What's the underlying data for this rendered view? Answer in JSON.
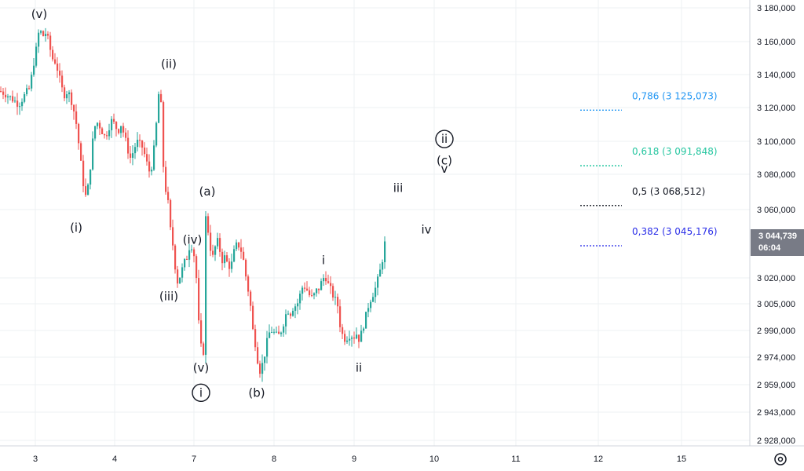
{
  "chart_data": {
    "type": "candlestick",
    "title": "",
    "xlabel": "",
    "ylabel": "",
    "x_ticks": [
      "3",
      "4",
      "7",
      "8",
      "9",
      "10",
      "11",
      "12",
      "15"
    ],
    "y_ticks": [
      "3 180,000",
      "3 160,000",
      "3 140,000",
      "3 120,000",
      "3 100,000",
      "3 080,000",
      "3 060,000",
      "3 044,739",
      "3 020,000",
      "3 005,000",
      "2 990,000",
      "2 974,000",
      "2 959,000",
      "2 943,000",
      "2 928,000"
    ],
    "ylim": [
      2928000,
      3180000
    ],
    "grid": true,
    "colors": {
      "up": "#26a69a",
      "down": "#ef5350",
      "grid": "#eef0f3",
      "last_price_bg": "#787b86"
    },
    "path": [
      [
        0,
        3130
      ],
      [
        8,
        3128
      ],
      [
        16,
        3125
      ],
      [
        24,
        3122
      ],
      [
        32,
        3128
      ],
      [
        38,
        3132
      ],
      [
        42,
        3145
      ],
      [
        46,
        3155
      ],
      [
        50,
        3168
      ],
      [
        54,
        3163
      ],
      [
        58,
        3165
      ],
      [
        62,
        3160
      ],
      [
        66,
        3150
      ],
      [
        70,
        3148
      ],
      [
        74,
        3142
      ],
      [
        78,
        3132
      ],
      [
        82,
        3128
      ],
      [
        86,
        3130
      ],
      [
        90,
        3126
      ],
      [
        94,
        3118
      ],
      [
        98,
        3108
      ],
      [
        102,
        3090
      ],
      [
        106,
        3075
      ],
      [
        110,
        3065
      ],
      [
        114,
        3080
      ],
      [
        118,
        3100
      ],
      [
        122,
        3112
      ],
      [
        126,
        3110
      ],
      [
        130,
        3106
      ],
      [
        134,
        3102
      ],
      [
        138,
        3108
      ],
      [
        142,
        3112
      ],
      [
        146,
        3110
      ],
      [
        150,
        3106
      ],
      [
        154,
        3110
      ],
      [
        158,
        3104
      ],
      [
        162,
        3096
      ],
      [
        166,
        3090
      ],
      [
        170,
        3094
      ],
      [
        174,
        3100
      ],
      [
        178,
        3098
      ],
      [
        182,
        3096
      ],
      [
        186,
        3088
      ],
      [
        190,
        3082
      ],
      [
        194,
        3086
      ],
      [
        198,
        3104
      ],
      [
        202,
        3128
      ],
      [
        204,
        3132
      ],
      [
        206,
        3110
      ],
      [
        208,
        3085
      ],
      [
        210,
        3072
      ],
      [
        213,
        3070
      ],
      [
        216,
        3050
      ],
      [
        219,
        3044
      ],
      [
        222,
        3030
      ],
      [
        226,
        3018
      ],
      [
        230,
        3022
      ],
      [
        234,
        3028
      ],
      [
        238,
        3032
      ],
      [
        242,
        3040
      ],
      [
        246,
        3038
      ],
      [
        250,
        3020
      ],
      [
        254,
        2985
      ],
      [
        258,
        2975
      ],
      [
        260,
        2980
      ],
      [
        262,
        3055
      ],
      [
        266,
        3045
      ],
      [
        270,
        3030
      ],
      [
        274,
        3038
      ],
      [
        278,
        3042
      ],
      [
        282,
        3030
      ],
      [
        286,
        3032
      ],
      [
        290,
        3028
      ],
      [
        294,
        3026
      ],
      [
        298,
        3035
      ],
      [
        302,
        3040
      ],
      [
        306,
        3038
      ],
      [
        310,
        3030
      ],
      [
        314,
        3018
      ],
      [
        318,
        3008
      ],
      [
        322,
        2990
      ],
      [
        326,
        2980
      ],
      [
        330,
        2966
      ],
      [
        334,
        2970
      ],
      [
        338,
        2978
      ],
      [
        342,
        2988
      ],
      [
        346,
        2990
      ],
      [
        350,
        2988
      ],
      [
        354,
        2986
      ],
      [
        358,
        2990
      ],
      [
        362,
        2996
      ],
      [
        366,
        3002
      ],
      [
        370,
        3000
      ],
      [
        374,
        3004
      ],
      [
        378,
        3004
      ],
      [
        382,
        3010
      ],
      [
        386,
        3016
      ],
      [
        390,
        3014
      ],
      [
        394,
        3010
      ],
      [
        398,
        3008
      ],
      [
        402,
        3012
      ],
      [
        406,
        3014
      ],
      [
        410,
        3018
      ],
      [
        414,
        3022
      ],
      [
        418,
        3016
      ],
      [
        422,
        3012
      ],
      [
        426,
        3008
      ],
      [
        430,
        3004
      ],
      [
        434,
        2990
      ],
      [
        438,
        2985
      ],
      [
        442,
        2986
      ],
      [
        446,
        2988
      ],
      [
        450,
        2986
      ],
      [
        454,
        2988
      ],
      [
        458,
        2984
      ],
      [
        462,
        2992
      ],
      [
        466,
        2998
      ],
      [
        470,
        3006
      ],
      [
        474,
        3010
      ],
      [
        478,
        3014
      ],
      [
        482,
        3020
      ],
      [
        486,
        3028
      ],
      [
        490,
        3040
      ],
      [
        492,
        3044.739
      ]
    ],
    "last_price": {
      "value": "3 044,739",
      "countdown": "06:04"
    },
    "wave_labels": [
      {
        "text": "(v)",
        "x": 50,
        "y": 3174
      },
      {
        "text": "(ii)",
        "x": 215,
        "y": 3144
      },
      {
        "text": "(i)",
        "x": 97,
        "y": 3047
      },
      {
        "text": "(a)",
        "x": 264,
        "y": 3068
      },
      {
        "text": "(iv)",
        "x": 245,
        "y": 3040
      },
      {
        "text": "(iii)",
        "x": 215,
        "y": 3007
      },
      {
        "text": "(v)",
        "x": 256,
        "y": 2966
      },
      {
        "text": "i",
        "x": 256,
        "y": 2952,
        "circled": true
      },
      {
        "text": "(b)",
        "x": 327,
        "y": 2952
      },
      {
        "text": "i",
        "x": 412,
        "y": 3028
      },
      {
        "text": "ii",
        "x": 457,
        "y": 2966
      },
      {
        "text": "iii",
        "x": 507,
        "y": 3070
      },
      {
        "text": "iv",
        "x": 543,
        "y": 3046
      },
      {
        "text": "ii",
        "x": 566,
        "y": 3099,
        "circled": true
      },
      {
        "text": "(c)",
        "x": 566,
        "y": 3086
      },
      {
        "text": "v",
        "x": 566,
        "y": 3081
      }
    ],
    "fib_levels": [
      {
        "ratio": "0,786",
        "label": "0,786 (3 125,073)",
        "value": 3125.073,
        "color": "#2196f3"
      },
      {
        "ratio": "0,618",
        "label": "0,618 (3 091,848)",
        "value": 3091.848,
        "color": "#26c6a0"
      },
      {
        "ratio": "0,5",
        "label": "0,5 (3 068,512)",
        "value": 3068.512,
        "color": "#131722"
      },
      {
        "ratio": "0,382",
        "label": "0,382 (3 045,176)",
        "value": 3045.176,
        "color": "#2a2ee8"
      }
    ],
    "icons": {
      "bottom_right": "settings-icon"
    }
  }
}
